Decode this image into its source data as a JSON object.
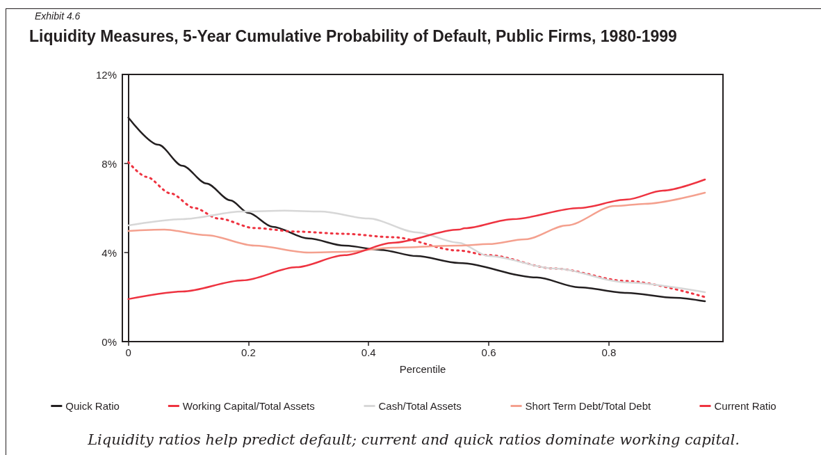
{
  "chart_data": {
    "type": "line",
    "subtitle": "Exhibit 4.6",
    "title": "Liquidity Measures, 5-Year Cumulative Probability of Default, Public Firms, 1980-1999",
    "xlabel": "Percentile",
    "xlim": [
      -0.01,
      0.99
    ],
    "xticks": [
      0,
      0.2,
      0.4,
      0.6,
      0.8
    ],
    "ylim": [
      0,
      12
    ],
    "yticks": [
      {
        "value": 0,
        "label": "0%"
      },
      {
        "value": 4,
        "label": "4%"
      },
      {
        "value": 8,
        "label": "8%"
      },
      {
        "value": 12,
        "label": "12%"
      }
    ],
    "marker": "none",
    "legend": "bottom",
    "annotations": [
      "Liquidity ratios help predict default; current and quick ratios dominate working capital."
    ],
    "series": [
      {
        "name": "Quick Ratio",
        "color": "#231f20",
        "line_style": "solid",
        "x": [
          0,
          0.05,
          0.09,
          0.13,
          0.17,
          0.2,
          0.24,
          0.3,
          0.36,
          0.42,
          0.48,
          0.55,
          0.68,
          0.75,
          0.83,
          0.91,
          0.96
        ],
        "values": [
          10.06,
          8.84,
          7.9,
          7.1,
          6.34,
          5.78,
          5.16,
          4.63,
          4.31,
          4.12,
          3.84,
          3.53,
          2.88,
          2.44,
          2.19,
          1.97,
          1.81
        ]
      },
      {
        "name": "Working Capital/Total Assets",
        "color": "#ee3340",
        "line_style": "dotted",
        "x": [
          0,
          0.03,
          0.07,
          0.11,
          0.15,
          0.21,
          0.28,
          0.36,
          0.44,
          0.55,
          0.6,
          0.71,
          0.83,
          0.96
        ],
        "values": [
          8.06,
          7.4,
          6.66,
          6.0,
          5.53,
          5.1,
          4.94,
          4.84,
          4.69,
          4.09,
          3.88,
          3.28,
          2.72,
          2.0
        ]
      },
      {
        "name": "Cash/Total Assets",
        "color": "#d7d7d7",
        "line_style": "solid",
        "x": [
          0,
          0.09,
          0.19,
          0.26,
          0.32,
          0.4,
          0.48,
          0.55,
          0.6,
          0.71,
          0.83,
          0.96
        ],
        "values": [
          5.22,
          5.5,
          5.84,
          5.88,
          5.84,
          5.53,
          4.91,
          4.44,
          3.84,
          3.28,
          2.66,
          2.22
        ]
      },
      {
        "name": "Short Term Debt/Total Debt",
        "color": "#f4a08e",
        "line_style": "solid",
        "x": [
          0,
          0.06,
          0.13,
          0.21,
          0.3,
          0.36,
          0.44,
          0.55,
          0.6,
          0.66,
          0.73,
          0.81,
          0.86,
          0.96
        ],
        "values": [
          4.97,
          5.03,
          4.78,
          4.31,
          4.0,
          4.03,
          4.22,
          4.31,
          4.38,
          4.59,
          5.22,
          6.09,
          6.19,
          6.69
        ]
      },
      {
        "name": "Current Ratio",
        "color": "#ee3340",
        "line_style": "solid",
        "x": [
          0,
          0.09,
          0.19,
          0.28,
          0.36,
          0.44,
          0.55,
          0.56,
          0.64,
          0.75,
          0.83,
          0.89,
          0.96
        ],
        "values": [
          1.91,
          2.25,
          2.75,
          3.34,
          3.88,
          4.44,
          5.03,
          5.09,
          5.5,
          6.0,
          6.38,
          6.78,
          7.28
        ]
      }
    ]
  }
}
